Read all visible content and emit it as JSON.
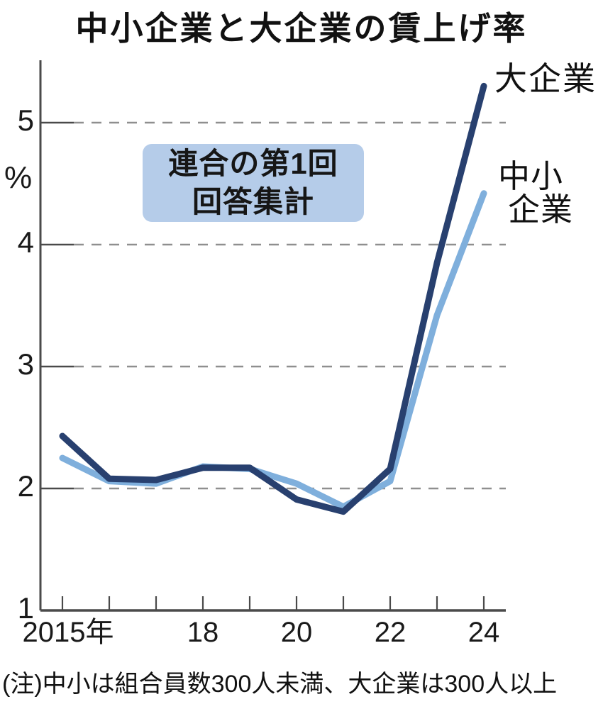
{
  "page": {
    "title": "中小企業と大企業の賃上げ率",
    "unit_label": "%",
    "note": "(注)中小は組合員数300人未満、大企業は300人以上",
    "annotation": {
      "line1": "連合の第1回",
      "line2": "回答集計"
    }
  },
  "chart_data": {
    "type": "line",
    "title": "中小企業と大企業の賃上げ率",
    "ylabel": "%",
    "ylim": [
      1,
      5.5
    ],
    "grid": "horizontal dashed at 2,3,4,5",
    "legend_position": "right of line endpoints",
    "x": [
      2015,
      2016,
      2017,
      2018,
      2019,
      2020,
      2021,
      2022,
      2023,
      2024
    ],
    "x_tick_labels": [
      {
        "year": 2015,
        "label": "2015年"
      },
      {
        "year": 2018,
        "label": "18"
      },
      {
        "year": 2020,
        "label": "20"
      },
      {
        "year": 2022,
        "label": "22"
      },
      {
        "year": 2024,
        "label": "24"
      }
    ],
    "y_ticks": [
      5,
      4,
      3,
      2,
      1
    ],
    "series": [
      {
        "name": "大企業",
        "label_lines": [
          "大企業"
        ],
        "color": "#28406f",
        "values": [
          2.43,
          2.08,
          2.07,
          2.17,
          2.17,
          1.91,
          1.81,
          2.16,
          3.85,
          5.3
        ]
      },
      {
        "name": "中小企業",
        "label_lines": [
          "中小",
          "企業"
        ],
        "color": "#7fafdc",
        "values": [
          2.25,
          2.06,
          2.04,
          2.18,
          2.16,
          2.04,
          1.85,
          2.06,
          3.42,
          4.42
        ]
      }
    ],
    "colors": {
      "axis": "#4a4a4a",
      "gridline": "#8f8f8f",
      "annotation_bg": "#b5cce9",
      "text": "#111111"
    }
  }
}
